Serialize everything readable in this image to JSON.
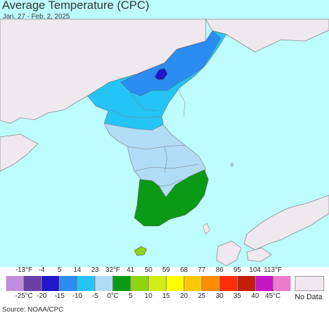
{
  "header": {
    "title": "Average Temperature (CPC)",
    "date_range": "Jan. 27 - Feb. 2, 2025"
  },
  "map": {
    "ocean_color": "#bdfcff",
    "land_color": "#efe8ee",
    "border_color": "#8a8a8a"
  },
  "legend": {
    "fahrenheit_ticks": [
      "-13°F",
      "-4",
      "5",
      "14",
      "23",
      "32°F",
      "41",
      "50",
      "59",
      "68",
      "77",
      "86",
      "95",
      "104",
      "113°F"
    ],
    "celsius_ticks": [
      "-25°C",
      "-20",
      "-15",
      "-10",
      "-5",
      "0°C",
      "5",
      "10",
      "15",
      "20",
      "25",
      "30",
      "35",
      "40",
      "45°C"
    ],
    "colors": [
      "#c08ede",
      "#6a3fa8",
      "#1f17c9",
      "#2b8cf2",
      "#25c4f7",
      "#b0dcf5",
      "#0b9a16",
      "#8fd313",
      "#d2ec15",
      "#ffff00",
      "#fcc706",
      "#ff8c05",
      "#fd2e07",
      "#c01f08",
      "#c716c8",
      "#ec7cca"
    ],
    "no_data_color": "#efe8ee",
    "no_data_label": "No Data"
  },
  "footer": {
    "source": "Source: NOAA/CPC"
  }
}
